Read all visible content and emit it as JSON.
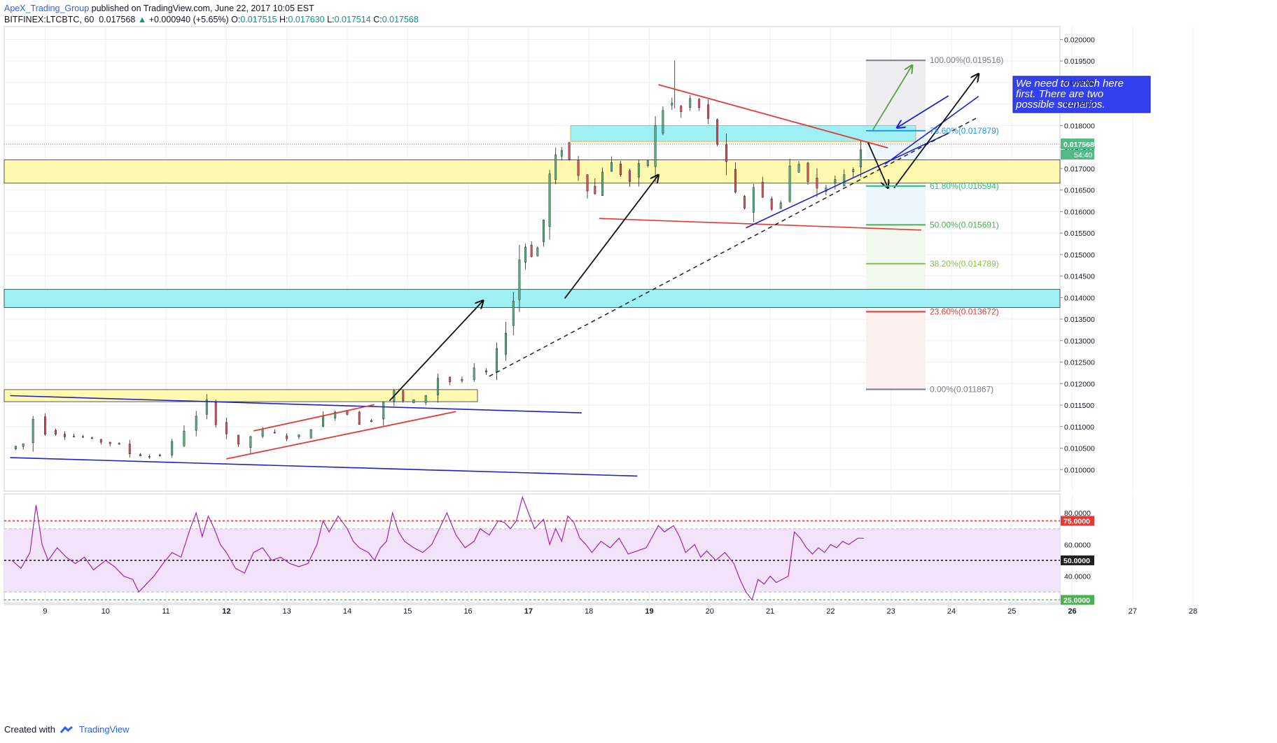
{
  "header": {
    "author": "ApeX_Trading_Group",
    "published": "published on TradingView.com, June 22, 2017 10:05 EST",
    "symbol": "BITFINEX:LTCBTC, 60",
    "last": "0.017568",
    "change": "+0.000940 (+5.65%)",
    "o_label": "O:",
    "o": "0.017515",
    "h_label": "H:",
    "h": "0.017630",
    "l_label": "L:",
    "l": "0.017514",
    "c_label": "C:",
    "c": "0.017568"
  },
  "footer": {
    "created_with": "Created with",
    "brand": "TradingView"
  },
  "colors": {
    "bull": "#26a69a",
    "bear": "#ef5350",
    "rsi": "#9c27b0",
    "rsi_fill": "#f3e3fa",
    "yellow_zone": "#fff9b0",
    "cyan_zone": "#9ff0f4",
    "red_line": "#e53935",
    "blue_line": "#1e22c8",
    "note_bg": "#3340ee"
  },
  "chart_data": {
    "type": "candlestick",
    "symbol": "BITFINEX:LTCBTC",
    "interval": "60",
    "x_ticks": [
      "9",
      "10",
      "11",
      "12",
      "13",
      "14",
      "15",
      "16",
      "17",
      "18",
      "19",
      "20",
      "21",
      "22",
      "23",
      "24",
      "25",
      "26",
      "27",
      "28"
    ],
    "y_range": [
      0.0095,
      0.0203
    ],
    "y_ticks": [
      "0.020000",
      "0.019500",
      "0.019000",
      "0.018500",
      "0.018000",
      "0.017500",
      "0.017000",
      "0.016500",
      "0.016000",
      "0.015500",
      "0.015000",
      "0.014500",
      "0.014000",
      "0.013500",
      "0.013000",
      "0.012500",
      "0.012000",
      "0.011500",
      "0.011000",
      "0.010500",
      "0.010000"
    ],
    "last_price_label": "0.017568",
    "countdown_label": "54:40",
    "path": [
      [
        8.45,
        0.01048
      ],
      [
        8.7,
        0.0106
      ],
      [
        8.9,
        0.0112
      ],
      [
        9.1,
        0.0109
      ],
      [
        9.4,
        0.0108
      ],
      [
        9.7,
        0.01075
      ],
      [
        10.0,
        0.01065
      ],
      [
        10.3,
        0.01058
      ],
      [
        10.5,
        0.01038
      ],
      [
        10.8,
        0.0103
      ],
      [
        11.0,
        0.01035
      ],
      [
        11.2,
        0.0106
      ],
      [
        11.4,
        0.01095
      ],
      [
        11.6,
        0.0112
      ],
      [
        11.75,
        0.01155
      ],
      [
        11.9,
        0.01115
      ],
      [
        12.1,
        0.01085
      ],
      [
        12.3,
        0.0105
      ],
      [
        12.5,
        0.01078
      ],
      [
        12.7,
        0.0109
      ],
      [
        12.9,
        0.01083
      ],
      [
        13.1,
        0.01075
      ],
      [
        13.3,
        0.01078
      ],
      [
        13.5,
        0.011
      ],
      [
        13.7,
        0.0112
      ],
      [
        13.9,
        0.0114
      ],
      [
        14.1,
        0.0113
      ],
      [
        14.3,
        0.0111
      ],
      [
        14.5,
        0.01118
      ],
      [
        14.7,
        0.0116
      ],
      [
        14.85,
        0.0118
      ],
      [
        15.0,
        0.01158
      ],
      [
        15.2,
        0.0116
      ],
      [
        15.4,
        0.01175
      ],
      [
        15.6,
        0.01215
      ],
      [
        15.8,
        0.01205
      ],
      [
        16.0,
        0.0121
      ],
      [
        16.2,
        0.0123
      ],
      [
        16.4,
        0.01225
      ],
      [
        16.55,
        0.0127
      ],
      [
        16.7,
        0.0133
      ],
      [
        16.8,
        0.01395
      ],
      [
        16.9,
        0.0149
      ],
      [
        17.0,
        0.0152
      ],
      [
        17.1,
        0.015
      ],
      [
        17.2,
        0.01515
      ],
      [
        17.3,
        0.0158
      ],
      [
        17.4,
        0.0168
      ],
      [
        17.5,
        0.0172
      ],
      [
        17.6,
        0.0175
      ],
      [
        17.75,
        0.0172
      ],
      [
        17.9,
        0.0169
      ],
      [
        18.05,
        0.0166
      ],
      [
        18.15,
        0.0164
      ],
      [
        18.3,
        0.017
      ],
      [
        18.45,
        0.0171
      ],
      [
        18.6,
        0.0169
      ],
      [
        18.75,
        0.0167
      ],
      [
        18.9,
        0.017
      ],
      [
        19.05,
        0.0172
      ],
      [
        19.15,
        0.0179
      ],
      [
        19.3,
        0.0184
      ],
      [
        19.45,
        0.0185
      ],
      [
        19.6,
        0.0183
      ],
      [
        19.75,
        0.0186
      ],
      [
        19.9,
        0.0184
      ],
      [
        20.05,
        0.0181
      ],
      [
        20.2,
        0.0176
      ],
      [
        20.35,
        0.017
      ],
      [
        20.5,
        0.0163
      ],
      [
        20.65,
        0.0161
      ],
      [
        20.8,
        0.0166
      ],
      [
        20.95,
        0.0163
      ],
      [
        21.1,
        0.0161
      ],
      [
        21.25,
        0.0162
      ],
      [
        21.4,
        0.017
      ],
      [
        21.55,
        0.0171
      ],
      [
        21.7,
        0.0168
      ],
      [
        21.85,
        0.0165
      ],
      [
        22.0,
        0.0166
      ],
      [
        22.15,
        0.0167
      ],
      [
        22.3,
        0.0169
      ],
      [
        22.45,
        0.017
      ],
      [
        22.55,
        0.01757
      ]
    ],
    "annotations": {
      "fib": [
        {
          "label": "100.00%(0.019516)",
          "price": 0.019516,
          "color": "#787b86"
        },
        {
          "label": "78.60%(0.017879)",
          "price": 0.017879,
          "color": "#2196f3"
        },
        {
          "label": "61.80%(0.016594)",
          "price": 0.016594,
          "color": "#26c281"
        },
        {
          "label": "50.00%(0.015691)",
          "price": 0.015691,
          "color": "#4caf50"
        },
        {
          "label": "38.20%(0.014789)",
          "price": 0.014789,
          "color": "#8bc34a"
        },
        {
          "label": "23.60%(0.013672)",
          "price": 0.013672,
          "color": "#e53935"
        },
        {
          "label": "0.00%(0.011867)",
          "price": 0.011867,
          "color": "#787b86"
        }
      ],
      "note": [
        "We need to watch here",
        "first. There are two",
        "possible scenarios."
      ]
    },
    "rsi": {
      "levels": [
        "75.0000",
        "50.0000",
        "25.0000"
      ],
      "y_ticks": [
        "80.0000",
        "60.0000",
        "40.0000"
      ],
      "y_range": [
        23,
        92
      ],
      "points": [
        [
          8.45,
          50
        ],
        [
          8.6,
          45
        ],
        [
          8.75,
          55
        ],
        [
          8.85,
          85
        ],
        [
          8.95,
          60
        ],
        [
          9.05,
          50
        ],
        [
          9.2,
          58
        ],
        [
          9.35,
          52
        ],
        [
          9.5,
          48
        ],
        [
          9.65,
          52
        ],
        [
          9.8,
          44
        ],
        [
          10.0,
          50
        ],
        [
          10.15,
          46
        ],
        [
          10.3,
          40
        ],
        [
          10.45,
          38
        ],
        [
          10.55,
          30
        ],
        [
          10.65,
          34
        ],
        [
          10.8,
          40
        ],
        [
          10.95,
          48
        ],
        [
          11.1,
          55
        ],
        [
          11.25,
          52
        ],
        [
          11.4,
          70
        ],
        [
          11.5,
          80
        ],
        [
          11.6,
          65
        ],
        [
          11.7,
          78
        ],
        [
          11.8,
          70
        ],
        [
          11.9,
          60
        ],
        [
          12.0,
          55
        ],
        [
          12.15,
          45
        ],
        [
          12.3,
          42
        ],
        [
          12.45,
          55
        ],
        [
          12.6,
          58
        ],
        [
          12.75,
          50
        ],
        [
          12.9,
          52
        ],
        [
          13.05,
          48
        ],
        [
          13.2,
          46
        ],
        [
          13.35,
          48
        ],
        [
          13.5,
          60
        ],
        [
          13.6,
          75
        ],
        [
          13.7,
          68
        ],
        [
          13.85,
          78
        ],
        [
          14.0,
          70
        ],
        [
          14.1,
          62
        ],
        [
          14.2,
          58
        ],
        [
          14.35,
          55
        ],
        [
          14.45,
          50
        ],
        [
          14.55,
          58
        ],
        [
          14.65,
          62
        ],
        [
          14.75,
          80
        ],
        [
          14.85,
          68
        ],
        [
          14.95,
          62
        ],
        [
          15.1,
          58
        ],
        [
          15.25,
          55
        ],
        [
          15.4,
          60
        ],
        [
          15.55,
          72
        ],
        [
          15.65,
          80
        ],
        [
          15.8,
          66
        ],
        [
          15.95,
          58
        ],
        [
          16.1,
          62
        ],
        [
          16.2,
          70
        ],
        [
          16.35,
          66
        ],
        [
          16.5,
          75
        ],
        [
          16.6,
          74
        ],
        [
          16.7,
          70
        ],
        [
          16.8,
          75
        ],
        [
          16.9,
          90
        ],
        [
          17.0,
          80
        ],
        [
          17.1,
          70
        ],
        [
          17.25,
          76
        ],
        [
          17.35,
          60
        ],
        [
          17.45,
          70
        ],
        [
          17.55,
          62
        ],
        [
          17.65,
          78
        ],
        [
          17.75,
          74
        ],
        [
          17.85,
          64
        ],
        [
          17.95,
          60
        ],
        [
          18.05,
          55
        ],
        [
          18.2,
          62
        ],
        [
          18.35,
          58
        ],
        [
          18.5,
          64
        ],
        [
          18.65,
          54
        ],
        [
          18.8,
          56
        ],
        [
          18.95,
          58
        ],
        [
          19.05,
          65
        ],
        [
          19.15,
          72
        ],
        [
          19.25,
          68
        ],
        [
          19.4,
          72
        ],
        [
          19.5,
          65
        ],
        [
          19.6,
          55
        ],
        [
          19.75,
          60
        ],
        [
          19.85,
          52
        ],
        [
          19.95,
          56
        ],
        [
          20.1,
          50
        ],
        [
          20.25,
          55
        ],
        [
          20.4,
          48
        ],
        [
          20.5,
          38
        ],
        [
          20.6,
          30
        ],
        [
          20.7,
          25
        ],
        [
          20.8,
          38
        ],
        [
          20.9,
          35
        ],
        [
          21.0,
          40
        ],
        [
          21.1,
          36
        ],
        [
          21.2,
          38
        ],
        [
          21.3,
          40
        ],
        [
          21.4,
          68
        ],
        [
          21.5,
          64
        ],
        [
          21.6,
          58
        ],
        [
          21.7,
          54
        ],
        [
          21.8,
          58
        ],
        [
          21.9,
          55
        ],
        [
          22.0,
          60
        ],
        [
          22.1,
          58
        ],
        [
          22.2,
          62
        ],
        [
          22.3,
          60
        ],
        [
          22.45,
          64
        ],
        [
          22.55,
          64
        ]
      ]
    }
  }
}
